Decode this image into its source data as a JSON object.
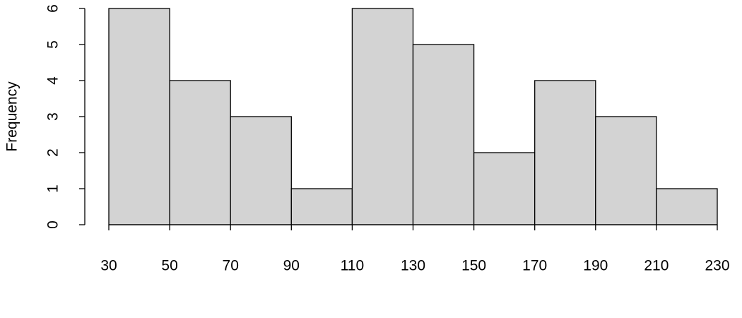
{
  "chart_data": {
    "type": "histogram",
    "ylabel": "Frequency",
    "bins": [
      30,
      50,
      70,
      90,
      110,
      130,
      150,
      170,
      190,
      210,
      230
    ],
    "values": [
      6,
      4,
      3,
      1,
      6,
      5,
      2,
      4,
      3,
      1
    ],
    "color": "#d3d3d3",
    "xlim": [
      30,
      230
    ],
    "xticks": [
      30,
      50,
      70,
      90,
      110,
      130,
      150,
      170,
      190,
      210,
      230
    ],
    "ylim": [
      0,
      6
    ],
    "yticks": [
      0,
      1,
      2,
      3,
      4,
      5,
      6
    ]
  }
}
